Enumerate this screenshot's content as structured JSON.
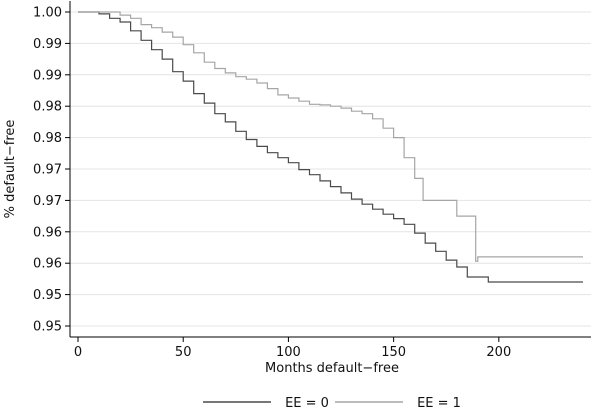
{
  "chart_data": {
    "type": "line",
    "title": "",
    "xlabel": "Months default−free",
    "ylabel": "% default−free",
    "xlim": [
      0,
      240
    ],
    "ylim": [
      0.95,
      1.0
    ],
    "x_ticks": [
      0,
      50,
      100,
      150,
      200
    ],
    "y_ticks": [
      {
        "value": 0.95,
        "label": "0.95"
      },
      {
        "value": 0.955,
        "label": "0.95"
      },
      {
        "value": 0.96,
        "label": "0.96"
      },
      {
        "value": 0.965,
        "label": "0.96"
      },
      {
        "value": 0.97,
        "label": "0.97"
      },
      {
        "value": 0.975,
        "label": "0.97"
      },
      {
        "value": 0.98,
        "label": "0.98"
      },
      {
        "value": 0.985,
        "label": "0.98"
      },
      {
        "value": 0.99,
        "label": "0.99"
      },
      {
        "value": 0.995,
        "label": "0.99"
      },
      {
        "value": 1.0,
        "label": "1.00"
      }
    ],
    "grid": true,
    "legend_position": "bottom",
    "series": [
      {
        "name": "EE = 0",
        "color": "#4a4a4a",
        "x": [
          0,
          5,
          10,
          15,
          20,
          25,
          30,
          35,
          40,
          45,
          50,
          55,
          60,
          65,
          70,
          75,
          80,
          85,
          90,
          95,
          100,
          105,
          110,
          115,
          120,
          125,
          130,
          135,
          140,
          145,
          150,
          155,
          160,
          165,
          170,
          175,
          180,
          185,
          190,
          195,
          200,
          210,
          220,
          230,
          240
        ],
        "y": [
          1.0,
          1.0,
          0.9997,
          0.999,
          0.9984,
          0.997,
          0.9955,
          0.994,
          0.9925,
          0.9905,
          0.989,
          0.987,
          0.9855,
          0.9838,
          0.9825,
          0.981,
          0.9797,
          0.9786,
          0.9776,
          0.9768,
          0.976,
          0.9749,
          0.9741,
          0.9731,
          0.9722,
          0.9712,
          0.9702,
          0.9694,
          0.9686,
          0.9678,
          0.9671,
          0.9662,
          0.9648,
          0.9632,
          0.9619,
          0.9605,
          0.9594,
          0.9578,
          0.9578,
          0.957,
          0.957,
          0.957,
          0.957,
          0.957,
          0.957
        ]
      },
      {
        "name": "EE = 1",
        "color": "#a6a6a6",
        "x": [
          0,
          5,
          10,
          15,
          20,
          25,
          30,
          35,
          40,
          45,
          50,
          55,
          60,
          65,
          70,
          75,
          80,
          85,
          90,
          95,
          100,
          105,
          110,
          115,
          120,
          125,
          130,
          135,
          140,
          145,
          150,
          155,
          160,
          164,
          170,
          175,
          180,
          185,
          188,
          189,
          190,
          200,
          210,
          220,
          230,
          240
        ],
        "y": [
          1.0,
          1.0,
          1.0,
          1.0,
          0.9995,
          0.999,
          0.998,
          0.9975,
          0.9968,
          0.996,
          0.9948,
          0.9935,
          0.992,
          0.991,
          0.9903,
          0.9897,
          0.9893,
          0.9887,
          0.9878,
          0.9868,
          0.9863,
          0.9858,
          0.9853,
          0.9852,
          0.985,
          0.9847,
          0.9842,
          0.9838,
          0.983,
          0.9815,
          0.98,
          0.9768,
          0.9735,
          0.97,
          0.97,
          0.97,
          0.9675,
          0.9675,
          0.9675,
          0.9603,
          0.961,
          0.961,
          0.961,
          0.961,
          0.961,
          0.961
        ]
      }
    ]
  }
}
